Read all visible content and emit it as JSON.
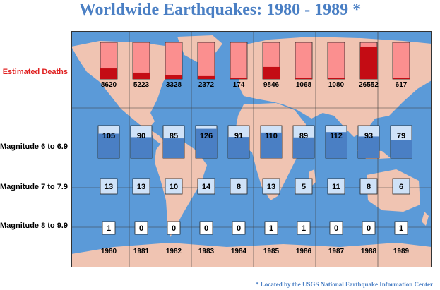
{
  "title": "Worldwide Earthquakes: 1980 - 1989 *",
  "footnote": "* Located by the USGS National Earthquake Information Center",
  "row_labels": {
    "deaths": "Estimated Deaths",
    "mag6": "Magnitude 6 to 6.9",
    "mag7": "Magnitude 7 to 7.9",
    "mag8": "Magnitude 8 to 9.9"
  },
  "colors": {
    "ocean": "#5b9ad8",
    "land": "#f0c4b2",
    "deaths_light": "#fb8f8f",
    "deaths_dark": "#c40c14",
    "mag6_light": "#cfe2f8",
    "mag6_dark": "#4a7fc4",
    "mag7_box": "#cfe2f8",
    "mag8_box": "#ffffff"
  },
  "chart_data": {
    "type": "table",
    "categories": [
      "1980",
      "1981",
      "1982",
      "1983",
      "1984",
      "1985",
      "1986",
      "1987",
      "1988",
      "1989"
    ],
    "series": [
      {
        "key": "deaths",
        "name": "Estimated Deaths",
        "values": [
          8620,
          5223,
          3328,
          2372,
          174,
          9846,
          1068,
          1080,
          26552,
          617
        ]
      },
      {
        "key": "mag6",
        "name": "Magnitude 6 to 6.9",
        "values": [
          105,
          90,
          85,
          126,
          91,
          110,
          89,
          112,
          93,
          79
        ]
      },
      {
        "key": "mag7",
        "name": "Magnitude 7 to 7.9",
        "values": [
          13,
          13,
          10,
          14,
          8,
          13,
          5,
          11,
          8,
          6
        ]
      },
      {
        "key": "mag8",
        "name": "Magnitude 8 to 9.9",
        "values": [
          1,
          0,
          0,
          0,
          0,
          1,
          1,
          0,
          0,
          1
        ]
      }
    ],
    "deaths_scale_max": 30000,
    "mag6_scale_max": 140
  }
}
